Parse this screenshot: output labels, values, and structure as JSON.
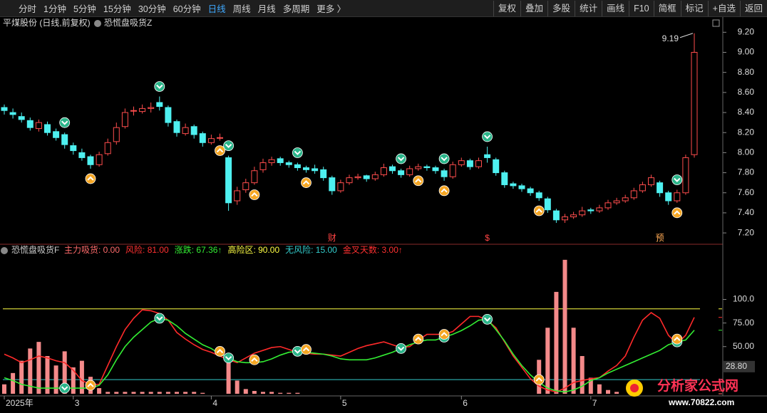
{
  "toolbar": {
    "left": [
      "分时",
      "1分钟",
      "5分钟",
      "15分钟",
      "30分钟",
      "60分钟",
      "日线",
      "周线",
      "月线",
      "多周期",
      "更多 〉"
    ],
    "active": 6,
    "right": [
      "复权",
      "叠加",
      "多股",
      "统计",
      "画线",
      "F10",
      "简框",
      "标记",
      "+自选",
      "返回"
    ]
  },
  "price_panel": {
    "stock": "平煤股份 (日线,前复权)",
    "indicator": "恐慌盘吸货Z",
    "ylim": [
      7.08,
      9.33
    ],
    "yticks": [
      {
        "value": 7.2,
        "label": "7.20"
      },
      {
        "value": 7.4,
        "label": "7.40"
      },
      {
        "value": 7.6,
        "label": "7.60"
      },
      {
        "value": 7.8,
        "label": "7.80"
      },
      {
        "value": 8.0,
        "label": "8.00"
      },
      {
        "value": 8.2,
        "label": "8.20"
      },
      {
        "value": 8.4,
        "label": "8.40"
      },
      {
        "value": 8.6,
        "label": "8.60"
      },
      {
        "value": 8.8,
        "label": "8.80"
      },
      {
        "value": 9.0,
        "label": "9.00"
      },
      {
        "value": 9.2,
        "label": "9.20"
      }
    ],
    "high_label": {
      "value": 9.19,
      "label": "9.19"
    },
    "up_color": "#ff4d4d",
    "down_color": "#4ef0f0",
    "candles": [
      [
        8.45,
        8.48,
        8.38,
        8.42
      ],
      [
        8.4,
        8.44,
        8.34,
        8.38
      ],
      [
        8.36,
        8.4,
        8.3,
        8.33
      ],
      [
        8.32,
        8.35,
        8.22,
        8.25
      ],
      [
        8.24,
        8.33,
        8.21,
        8.3
      ],
      [
        8.28,
        8.31,
        8.17,
        8.2
      ],
      [
        8.21,
        8.24,
        8.12,
        8.15
      ],
      [
        8.18,
        8.2,
        8.04,
        8.08
      ],
      [
        8.07,
        8.1,
        7.98,
        8.02
      ],
      [
        8.0,
        8.04,
        7.92,
        7.95
      ],
      [
        7.96,
        7.98,
        7.84,
        7.88
      ],
      [
        7.88,
        8.01,
        7.86,
        7.98
      ],
      [
        7.99,
        8.14,
        7.97,
        8.1
      ],
      [
        8.11,
        8.3,
        8.08,
        8.25
      ],
      [
        8.26,
        8.44,
        8.24,
        8.4
      ],
      [
        8.42,
        8.46,
        8.37,
        8.42
      ],
      [
        8.41,
        8.48,
        8.39,
        8.44
      ],
      [
        8.44,
        8.5,
        8.4,
        8.45
      ],
      [
        8.5,
        8.56,
        8.42,
        8.46
      ],
      [
        8.45,
        8.47,
        8.26,
        8.3
      ],
      [
        8.31,
        8.33,
        8.16,
        8.2
      ],
      [
        8.19,
        8.29,
        8.17,
        8.25
      ],
      [
        8.26,
        8.28,
        8.14,
        8.18
      ],
      [
        8.19,
        8.21,
        8.06,
        8.1
      ],
      [
        8.1,
        8.18,
        8.08,
        8.14
      ],
      [
        8.15,
        8.19,
        8.12,
        8.15
      ],
      [
        7.95,
        7.97,
        7.42,
        7.5
      ],
      [
        7.52,
        7.66,
        7.48,
        7.62
      ],
      [
        7.63,
        7.74,
        7.6,
        7.7
      ],
      [
        7.7,
        7.86,
        7.68,
        7.82
      ],
      [
        7.83,
        7.94,
        7.8,
        7.9
      ],
      [
        7.9,
        7.96,
        7.87,
        7.93
      ],
      [
        7.94,
        7.96,
        7.87,
        7.9
      ],
      [
        7.9,
        7.92,
        7.85,
        7.88
      ],
      [
        7.88,
        7.9,
        7.82,
        7.85
      ],
      [
        7.85,
        7.87,
        7.8,
        7.83
      ],
      [
        7.84,
        7.88,
        7.79,
        7.82
      ],
      [
        7.83,
        7.86,
        7.72,
        7.75
      ],
      [
        7.75,
        7.77,
        7.58,
        7.62
      ],
      [
        7.62,
        7.73,
        7.6,
        7.7
      ],
      [
        7.7,
        7.78,
        7.68,
        7.75
      ],
      [
        7.75,
        7.79,
        7.73,
        7.76
      ],
      [
        7.77,
        7.78,
        7.71,
        7.74
      ],
      [
        7.74,
        7.81,
        7.72,
        7.78
      ],
      [
        7.78,
        7.89,
        7.76,
        7.85
      ],
      [
        7.86,
        7.88,
        7.79,
        7.82
      ],
      [
        7.82,
        7.84,
        7.75,
        7.78
      ],
      [
        7.78,
        7.87,
        7.76,
        7.84
      ],
      [
        7.84,
        7.89,
        7.82,
        7.86
      ],
      [
        7.86,
        7.88,
        7.82,
        7.85
      ],
      [
        7.85,
        7.87,
        7.79,
        7.82
      ],
      [
        7.82,
        7.84,
        7.72,
        7.76
      ],
      [
        7.76,
        7.91,
        7.74,
        7.88
      ],
      [
        7.88,
        7.95,
        7.86,
        7.92
      ],
      [
        7.92,
        7.94,
        7.83,
        7.86
      ],
      [
        7.86,
        7.95,
        7.84,
        7.92
      ],
      [
        7.98,
        8.06,
        7.9,
        7.95
      ],
      [
        7.93,
        7.95,
        7.77,
        7.8
      ],
      [
        7.8,
        7.82,
        7.65,
        7.68
      ],
      [
        7.69,
        7.71,
        7.64,
        7.67
      ],
      [
        7.67,
        7.69,
        7.61,
        7.64
      ],
      [
        7.64,
        7.66,
        7.57,
        7.6
      ],
      [
        7.6,
        7.62,
        7.52,
        7.55
      ],
      [
        7.54,
        7.56,
        7.4,
        7.43
      ],
      [
        7.42,
        7.44,
        7.3,
        7.33
      ],
      [
        7.33,
        7.39,
        7.3,
        7.36
      ],
      [
        7.36,
        7.41,
        7.34,
        7.38
      ],
      [
        7.38,
        7.46,
        7.36,
        7.42
      ],
      [
        7.43,
        7.45,
        7.39,
        7.42
      ],
      [
        7.42,
        7.48,
        7.4,
        7.45
      ],
      [
        7.45,
        7.53,
        7.43,
        7.5
      ],
      [
        7.5,
        7.55,
        7.48,
        7.52
      ],
      [
        7.52,
        7.58,
        7.5,
        7.55
      ],
      [
        7.55,
        7.65,
        7.53,
        7.62
      ],
      [
        7.62,
        7.71,
        7.6,
        7.68
      ],
      [
        7.68,
        7.78,
        7.66,
        7.75
      ],
      [
        7.7,
        7.72,
        7.56,
        7.6
      ],
      [
        7.6,
        7.62,
        7.48,
        7.52
      ],
      [
        7.52,
        7.63,
        7.5,
        7.6
      ],
      [
        7.6,
        7.98,
        7.58,
        7.95
      ],
      [
        7.98,
        9.19,
        7.95,
        9.0
      ]
    ],
    "sell_signals": [
      7,
      18,
      26,
      34,
      46,
      51,
      56,
      78
    ],
    "buy_signals": [
      10,
      25,
      29,
      35,
      48,
      51,
      62,
      78
    ],
    "markers": [
      {
        "index": 38,
        "label": "财"
      },
      {
        "index": 56,
        "label": "$"
      },
      {
        "index": 76,
        "label": "预"
      }
    ]
  },
  "indicator_panel": {
    "name": "恐慌盘吸货F",
    "legend": [
      {
        "label": "主力吸货: 0.00",
        "value": 0,
        "color": "#ff6b6b"
      },
      {
        "label": "风险: 81.00",
        "value": 81,
        "color": "#ff3030"
      },
      {
        "label": "涨跌: 67.36↑",
        "value": 67.36,
        "color": "#33ee33"
      },
      {
        "label": "高险区: 90.00",
        "value": 90,
        "color": "#ffff44"
      },
      {
        "label": "无风险: 15.00",
        "value": 15,
        "color": "#33cccc"
      },
      {
        "label": "金叉天数: 3.00↑",
        "value": 3,
        "color": "#ff3030"
      }
    ],
    "ylim": [
      0,
      157
    ],
    "yticks": [
      {
        "value": 50,
        "label": "50.00"
      },
      {
        "value": 75,
        "label": "75.00"
      },
      {
        "value": 100,
        "label": "100.0"
      }
    ],
    "cursor": {
      "value": 28.8,
      "label": "28.80"
    },
    "bar_color": "#f48a8a",
    "bars": [
      10,
      22,
      35,
      48,
      55,
      40,
      30,
      45,
      28,
      35,
      18,
      6,
      2,
      2,
      2,
      2,
      2,
      2,
      2,
      2,
      2,
      2,
      2,
      1,
      0,
      0,
      33,
      14,
      5,
      3,
      2,
      2,
      1,
      1,
      1,
      0,
      0,
      0,
      0,
      0,
      0,
      0,
      0,
      0,
      0,
      0,
      0,
      0,
      0,
      0,
      0,
      0,
      0,
      0,
      0,
      0,
      0,
      0,
      0,
      0,
      0,
      0,
      36,
      70,
      108,
      142,
      70,
      40,
      17,
      10,
      4,
      2,
      0,
      0,
      0,
      0,
      0,
      0,
      0,
      0,
      0
    ],
    "series": [
      {
        "name": "风险",
        "color": "#ff2a2a",
        "values": [
          42,
          38,
          33,
          36,
          40,
          38,
          35,
          33,
          25,
          14,
          10,
          10,
          30,
          50,
          68,
          80,
          89,
          88,
          85,
          78,
          65,
          58,
          52,
          47,
          44,
          40,
          36,
          33,
          38,
          43,
          46,
          49,
          50,
          47,
          44,
          43,
          42,
          42,
          41,
          40,
          44,
          48,
          51,
          53,
          55,
          52,
          49,
          50,
          57,
          63,
          63,
          63,
          66,
          74,
          82,
          82,
          78,
          70,
          55,
          40,
          28,
          16,
          8,
          4,
          2,
          6,
          12,
          14,
          16,
          17,
          24,
          30,
          40,
          60,
          78,
          86,
          80,
          62,
          53,
          62,
          81
        ]
      },
      {
        "name": "涨跌",
        "color": "#33ee33",
        "values": [
          17,
          14,
          10,
          8,
          6,
          6,
          6,
          6,
          6,
          6,
          6,
          9,
          20,
          36,
          50,
          60,
          68,
          76,
          80,
          78,
          72,
          64,
          58,
          52,
          48,
          42,
          38,
          34,
          33,
          33,
          34,
          37,
          41,
          44,
          45,
          44,
          43,
          42,
          40,
          37,
          36,
          36,
          36,
          38,
          41,
          44,
          48,
          52,
          55,
          57,
          57,
          60,
          63,
          67,
          72,
          78,
          79,
          68,
          56,
          42,
          30,
          20,
          12,
          6,
          3,
          2,
          4,
          8,
          14,
          17,
          22,
          26,
          30,
          34,
          38,
          42,
          46,
          52,
          55,
          57,
          67.36
        ]
      }
    ]
  },
  "x_labels": [
    {
      "index": 0,
      "label": "2025年"
    },
    {
      "index": 8,
      "label": "3"
    },
    {
      "index": 24,
      "label": "4"
    },
    {
      "index": 39,
      "label": "5"
    },
    {
      "index": 53,
      "label": "6"
    },
    {
      "index": 68,
      "label": "7"
    }
  ],
  "watermark": {
    "title": "分析家公式网",
    "url": "www.70822.com"
  }
}
